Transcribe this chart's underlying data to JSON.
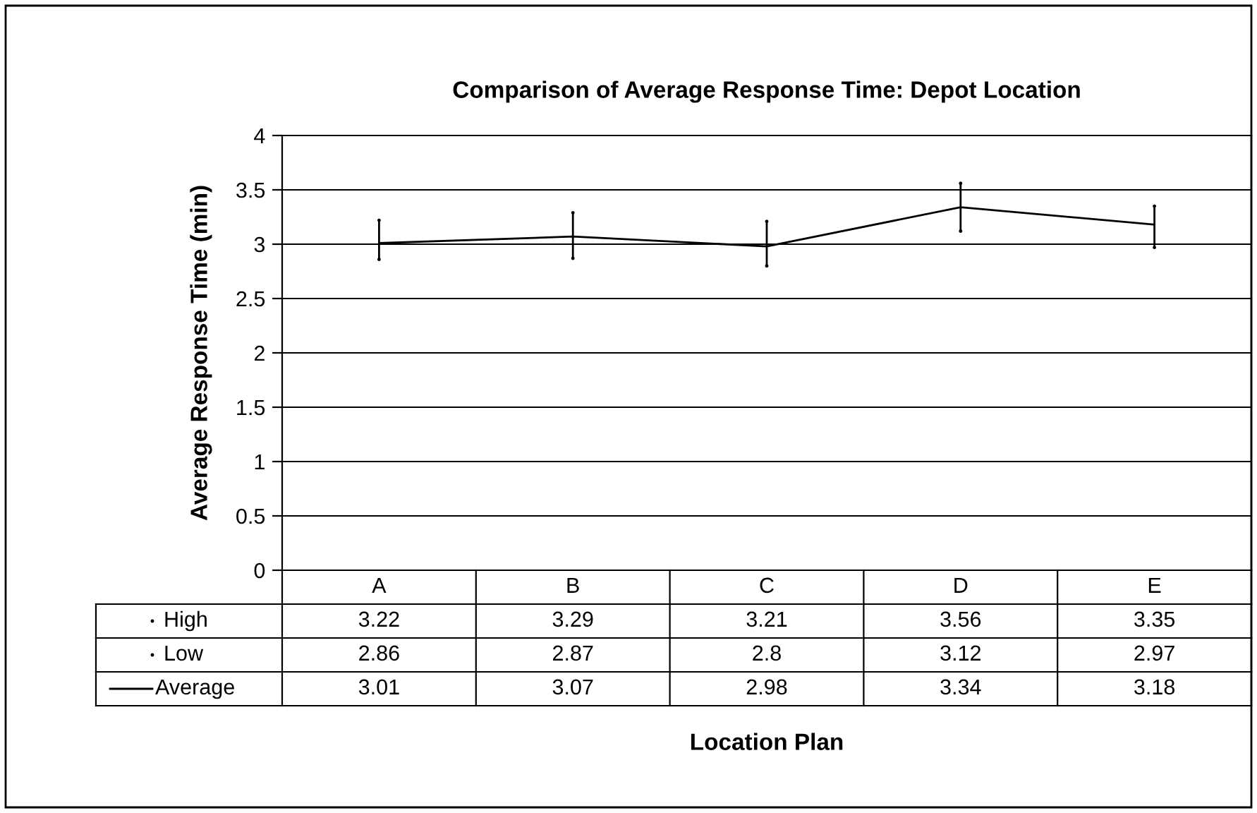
{
  "chart_data": {
    "type": "line",
    "title": "Comparison of Average Response Time: Depot Location",
    "annotations": [
      "Location Plan"
    ],
    "ylabel": "Average Response Time (min)",
    "categories": [
      "A",
      "B",
      "C",
      "D",
      "E"
    ],
    "series": [
      {
        "name": "High",
        "type": "scatter",
        "color": "#000000",
        "values": [
          3.22,
          3.29,
          3.21,
          3.56,
          3.35
        ]
      },
      {
        "name": "Low",
        "type": "scatter",
        "color": "#000000",
        "values": [
          2.86,
          2.87,
          2.8,
          3.12,
          2.97
        ]
      },
      {
        "name": "Average",
        "color": "#000000",
        "values": [
          3.01,
          3.07,
          2.98,
          3.34,
          3.18
        ]
      }
    ],
    "ylim": [
      0,
      4
    ],
    "yticks": [
      0,
      0.5,
      1,
      1.5,
      2,
      2.5,
      3,
      3.5,
      4
    ],
    "grid": "y",
    "legend": "bottom left",
    "marker": "none",
    "line_style": "solid",
    "data_labels": true
  }
}
